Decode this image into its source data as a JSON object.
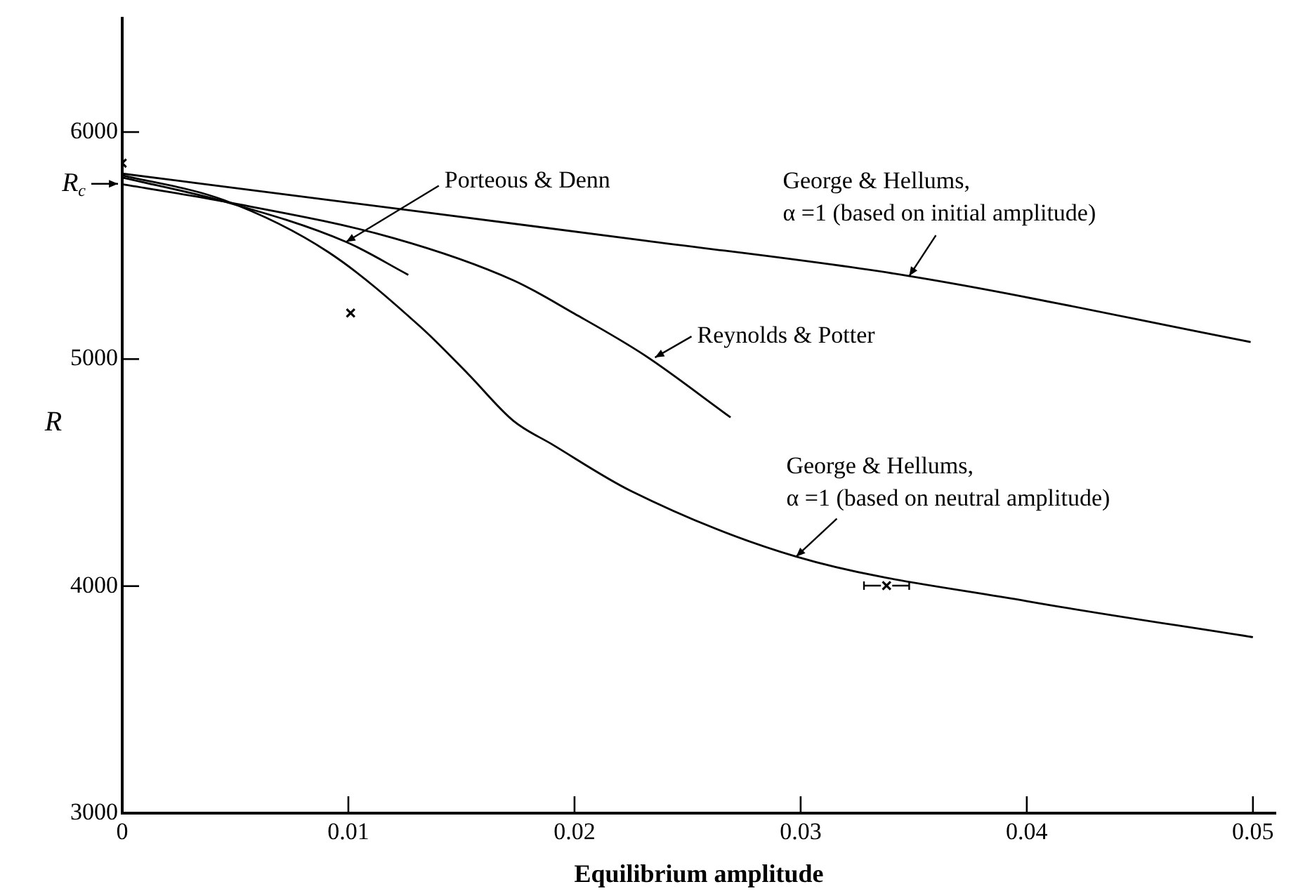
{
  "chart_data": {
    "type": "line",
    "xlabel": "Equilibrium amplitude",
    "ylabel": "R",
    "xlim": [
      0,
      0.051
    ],
    "ylim": [
      3000,
      6500
    ],
    "xticks": [
      0,
      0.01,
      0.02,
      0.03,
      0.04,
      0.05
    ],
    "yticks": [
      3000,
      4000,
      5000,
      6000
    ],
    "line_style": "solid",
    "marker": "none",
    "series": [
      {
        "color": "#000000",
        "x": [
          0,
          0.01,
          0.0231,
          0.0348,
          0.0499
        ],
        "values": [
          5817,
          5690,
          5522,
          5366,
          5075
        ]
      },
      {
        "color": "#000000",
        "x": [
          0,
          0.0045,
          0.012,
          0.0173,
          0.02,
          0.0231,
          0.0269
        ],
        "values": [
          5770,
          5694,
          5533,
          5347,
          5200,
          5017,
          4743
        ]
      },
      {
        "color": "#000000",
        "x": [
          0,
          0.0045,
          0.0099,
          0.01265
        ],
        "values": [
          5800,
          5694,
          5516,
          5371
        ]
      },
      {
        "color": "#000000",
        "x": [
          0,
          0.0045,
          0.0091,
          0.0132,
          0.0153,
          0.0173,
          0.019,
          0.0225,
          0.0298,
          0.04,
          0.05
        ],
        "values": [
          5810,
          5700,
          5472,
          5141,
          4934,
          4728,
          4625,
          4419,
          4130,
          3934,
          3775
        ]
      },
      {
        "type": "scatter",
        "marker": "cross",
        "color": "#000000",
        "x": [
          0,
          0.0101,
          0.0338
        ],
        "values": [
          5863,
          5203,
          4002
        ],
        "xerrors": [
          null,
          null,
          0.001
        ]
      }
    ],
    "annotations": [
      {
        "text": "Porteous & Denn",
        "x": 0.0099,
        "y": 5516
      },
      {
        "text": "George & Hellums,\nα =1 (based on initial amplitude)",
        "x": 0.0348,
        "y": 5366
      },
      {
        "text": "Reynolds & Potter",
        "x": 0.02356,
        "y": 5007
      },
      {
        "text": "George & Hellums,\nα =1 (based on neutral amplitude)",
        "x": 0.0298,
        "y": 4130
      },
      {
        "text": "R$_{c}$",
        "x": 0,
        "y": 5772
      }
    ]
  }
}
